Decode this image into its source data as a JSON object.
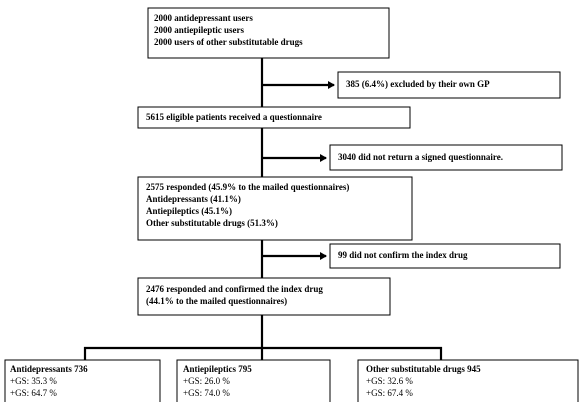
{
  "nodes": [
    {
      "lines": [
        "2000 antidepressant users",
        "2000 antiepileptic users",
        "2000 users of other substitutable drugs"
      ]
    },
    {
      "lines": [
        "385 (6.4%) excluded by their own GP"
      ]
    },
    {
      "lines": [
        "5615 eligible patients received a questionnaire"
      ]
    },
    {
      "lines": [
        "3040 did not return a signed questionnaire."
      ]
    },
    {
      "lines": [
        "2575 responded (45.9% to the mailed questionnaires)",
        "Antidepressants (41.1%)",
        "Antiepileptics (45.1%)",
        "Other substitutable drugs (51.3%)"
      ]
    },
    {
      "lines": [
        "99 did not confirm the index drug"
      ]
    },
    {
      "lines": [
        "2476 responded and confirmed the index drug",
        "(44.1% to the mailed questionnaires)"
      ]
    },
    {
      "lines": [
        "Antidepressants 736",
        "+GS: 35.3 %",
        "+GS: 64.7 %"
      ]
    },
    {
      "lines": [
        "Antiepileptics 795",
        "+GS: 26.0 %",
        "+GS: 74.0 %"
      ]
    },
    {
      "lines": [
        "Other substitutable drugs 945",
        "+GS: 32.6 %",
        "+GS: 67.4 %"
      ]
    }
  ]
}
